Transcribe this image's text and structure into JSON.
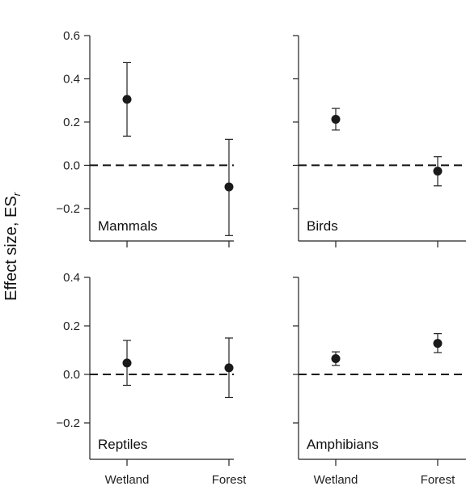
{
  "chart_data": {
    "type": "scatter",
    "ylabel": "Effect size, ES",
    "ylabel_subscript": "r",
    "categories": [
      "Wetland",
      "Forest"
    ],
    "reference_line": 0.0,
    "grid": false,
    "panels": [
      {
        "title": "Mammals",
        "ylim": [
          -0.35,
          0.6
        ],
        "yticks": [
          {
            "value": 0.6,
            "label": "0.6"
          },
          {
            "value": 0.4,
            "label": "0.4"
          },
          {
            "value": 0.2,
            "label": "0.2"
          },
          {
            "value": 0.0,
            "label": "0.0"
          },
          {
            "value": -0.2,
            "label": "−0.2"
          }
        ],
        "points": [
          {
            "category": "Wetland",
            "y": 0.305,
            "lower": 0.135,
            "upper": 0.475
          },
          {
            "category": "Forest",
            "y": -0.1,
            "lower": -0.325,
            "upper": 0.12
          }
        ]
      },
      {
        "title": "Birds",
        "ylim": [
          -0.35,
          0.6
        ],
        "yticks": [
          {
            "value": 0.6,
            "label": ""
          },
          {
            "value": 0.4,
            "label": ""
          },
          {
            "value": 0.2,
            "label": ""
          },
          {
            "value": 0.0,
            "label": ""
          },
          {
            "value": -0.2,
            "label": ""
          }
        ],
        "points": [
          {
            "category": "Wetland",
            "y": 0.213,
            "lower": 0.163,
            "upper": 0.263
          },
          {
            "category": "Forest",
            "y": -0.027,
            "lower": -0.095,
            "upper": 0.04
          }
        ]
      },
      {
        "title": "Reptiles",
        "ylim": [
          -0.35,
          0.4
        ],
        "yticks": [
          {
            "value": 0.4,
            "label": "0.4"
          },
          {
            "value": 0.2,
            "label": "0.2"
          },
          {
            "value": 0.0,
            "label": "0.0"
          },
          {
            "value": -0.2,
            "label": "−0.2"
          }
        ],
        "points": [
          {
            "category": "Wetland",
            "y": 0.047,
            "lower": -0.045,
            "upper": 0.14
          },
          {
            "category": "Forest",
            "y": 0.027,
            "lower": -0.095,
            "upper": 0.15
          }
        ]
      },
      {
        "title": "Amphibians",
        "ylim": [
          -0.35,
          0.4
        ],
        "yticks": [
          {
            "value": 0.4,
            "label": ""
          },
          {
            "value": 0.2,
            "label": ""
          },
          {
            "value": 0.0,
            "label": ""
          },
          {
            "value": -0.2,
            "label": ""
          }
        ],
        "points": [
          {
            "category": "Wetland",
            "y": 0.065,
            "lower": 0.037,
            "upper": 0.093
          },
          {
            "category": "Forest",
            "y": 0.128,
            "lower": 0.09,
            "upper": 0.168
          }
        ]
      }
    ]
  }
}
